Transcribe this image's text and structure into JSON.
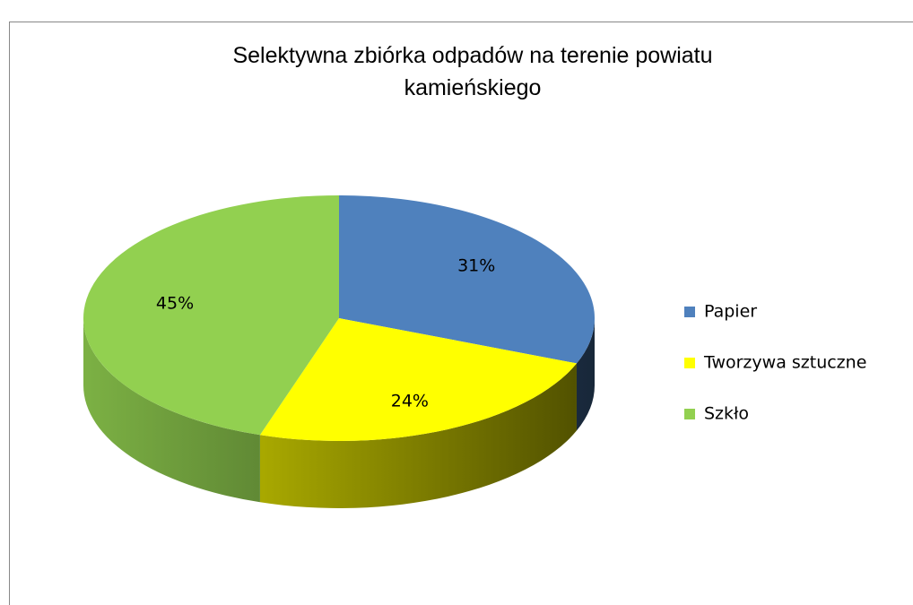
{
  "chart_data": {
    "type": "pie",
    "title": "Selektywna zbiórka odpadów na terenie powiatu kamieńskiego",
    "categories": [
      "Papier",
      "Tworzywa sztuczne",
      "Szkło"
    ],
    "values": [
      31,
      24,
      45
    ],
    "value_labels": [
      "31%",
      "24%",
      "45%"
    ],
    "colors": [
      "#4f81bd",
      "#ffff00",
      "#92d050"
    ],
    "legend": "right"
  }
}
